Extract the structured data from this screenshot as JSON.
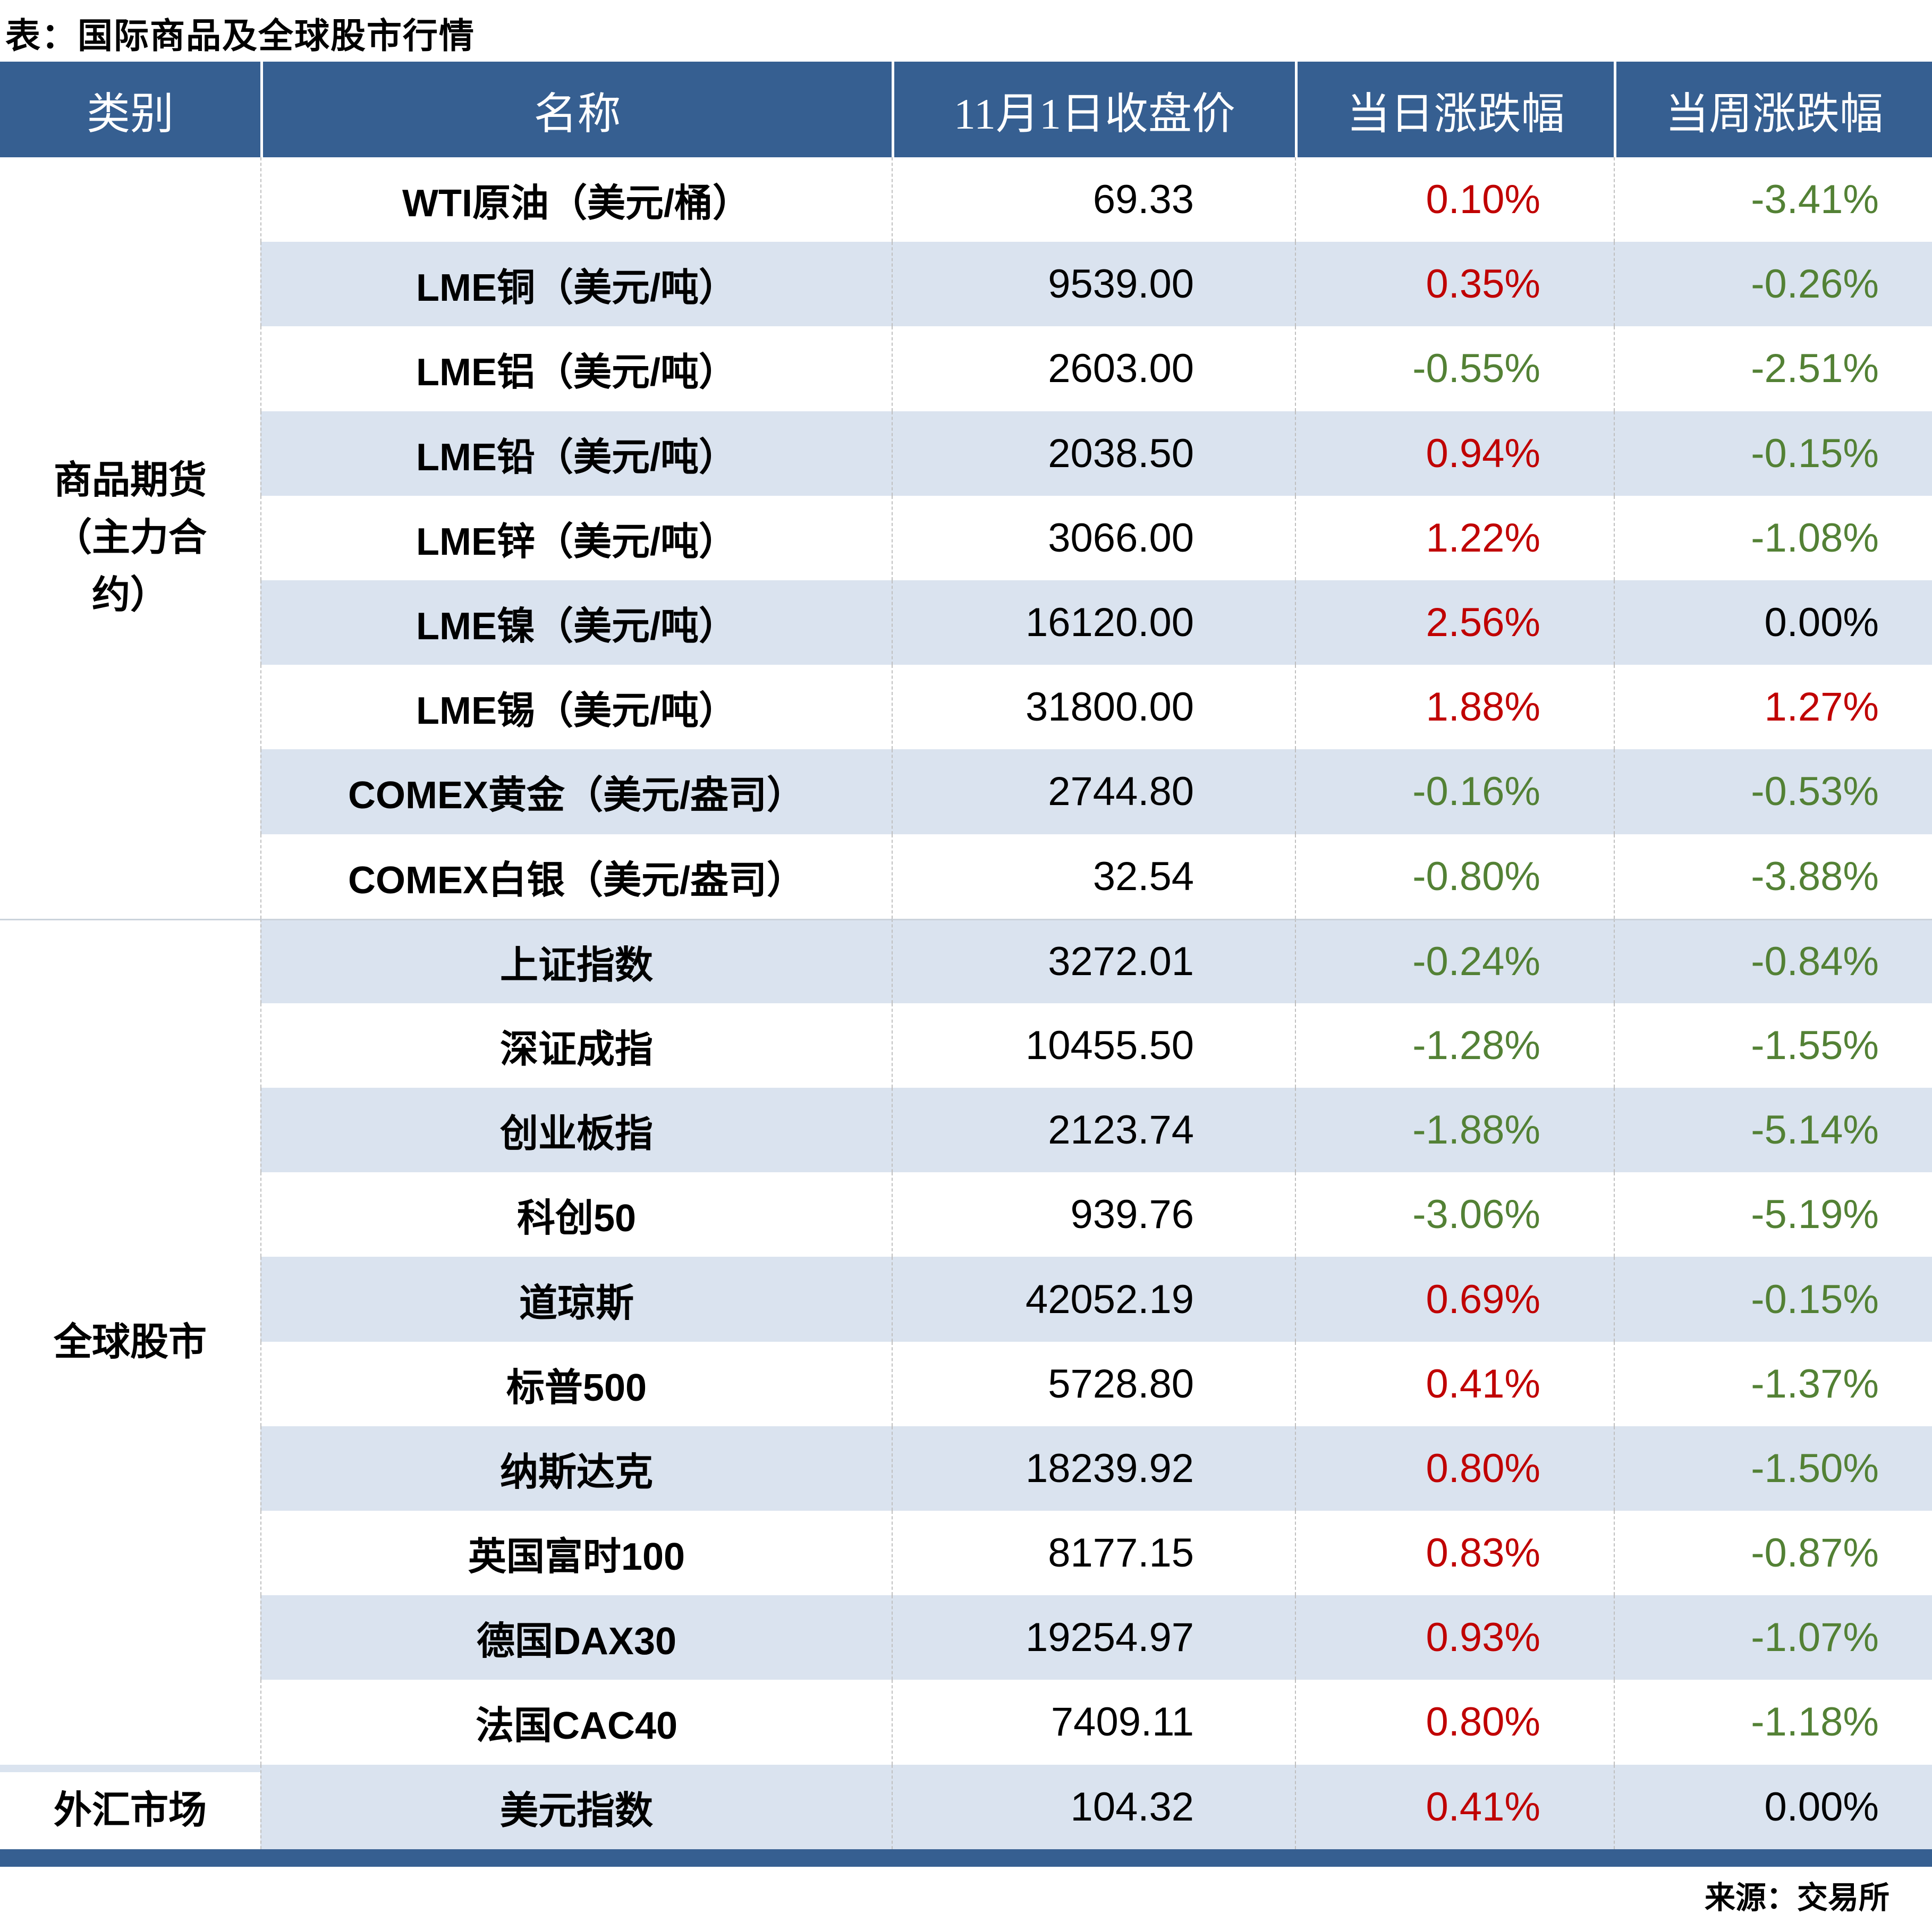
{
  "title": "表：国际商品及全球股市行情",
  "source": "来源：交易所",
  "colors": {
    "header_bg": "#365F91",
    "stripe": "#DAE3EF",
    "up": "#C00000",
    "down": "#538135",
    "neutral": "#000000"
  },
  "table": {
    "columns": [
      "类别",
      "名称",
      "11月1日收盘价",
      "当日涨跌幅",
      "当周涨跌幅"
    ],
    "sections": [
      {
        "category": "商品期货\n（主力合\n约）",
        "rows": [
          {
            "name": "WTI原油（美元/桶）",
            "close": "69.33",
            "day": "0.10%",
            "week": "-3.41%"
          },
          {
            "name": "LME铜（美元/吨）",
            "close": "9539.00",
            "day": "0.35%",
            "week": "-0.26%"
          },
          {
            "name": "LME铝（美元/吨）",
            "close": "2603.00",
            "day": "-0.55%",
            "week": "-2.51%"
          },
          {
            "name": "LME铅（美元/吨）",
            "close": "2038.50",
            "day": "0.94%",
            "week": "-0.15%"
          },
          {
            "name": "LME锌（美元/吨）",
            "close": "3066.00",
            "day": "1.22%",
            "week": "-1.08%"
          },
          {
            "name": "LME镍（美元/吨）",
            "close": "16120.00",
            "day": "2.56%",
            "week": "0.00%"
          },
          {
            "name": "LME锡（美元/吨）",
            "close": "31800.00",
            "day": "1.88%",
            "week": "1.27%"
          },
          {
            "name": "COMEX黄金（美元/盎司）",
            "close": "2744.80",
            "day": "-0.16%",
            "week": "-0.53%"
          },
          {
            "name": "COMEX白银（美元/盎司）",
            "close": "32.54",
            "day": "-0.80%",
            "week": "-3.88%"
          }
        ]
      },
      {
        "category": "全球股市",
        "rows": [
          {
            "name": "上证指数",
            "close": "3272.01",
            "day": "-0.24%",
            "week": "-0.84%"
          },
          {
            "name": "深证成指",
            "close": "10455.50",
            "day": "-1.28%",
            "week": "-1.55%"
          },
          {
            "name": "创业板指",
            "close": "2123.74",
            "day": "-1.88%",
            "week": "-5.14%"
          },
          {
            "name": "科创50",
            "close": "939.76",
            "day": "-3.06%",
            "week": "-5.19%"
          },
          {
            "name": "道琼斯",
            "close": "42052.19",
            "day": "0.69%",
            "week": "-0.15%"
          },
          {
            "name": "标普500",
            "close": "5728.80",
            "day": "0.41%",
            "week": "-1.37%"
          },
          {
            "name": "纳斯达克",
            "close": "18239.92",
            "day": "0.80%",
            "week": "-1.50%"
          },
          {
            "name": "英国富时100",
            "close": "8177.15",
            "day": "0.83%",
            "week": "-0.87%"
          },
          {
            "name": "德国DAX30",
            "close": "19254.97",
            "day": "0.93%",
            "week": "-1.07%"
          },
          {
            "name": "法国CAC40",
            "close": "7409.11",
            "day": "0.80%",
            "week": "-1.18%"
          }
        ]
      },
      {
        "category": "外汇市场",
        "rows": [
          {
            "name": "美元指数",
            "close": "104.32",
            "day": "0.41%",
            "week": "0.00%"
          }
        ]
      }
    ]
  },
  "chart_data": {
    "type": "table",
    "title": "表：国际商品及全球股市行情",
    "columns": [
      "类别",
      "名称",
      "11月1日收盘价",
      "当日涨跌幅",
      "当周涨跌幅"
    ],
    "rows": [
      [
        "商品期货（主力合约）",
        "WTI原油（美元/桶）",
        69.33,
        "0.10%",
        "-3.41%"
      ],
      [
        "商品期货（主力合约）",
        "LME铜（美元/吨）",
        9539.0,
        "0.35%",
        "-0.26%"
      ],
      [
        "商品期货（主力合约）",
        "LME铝（美元/吨）",
        2603.0,
        "-0.55%",
        "-2.51%"
      ],
      [
        "商品期货（主力合约）",
        "LME铅（美元/吨）",
        2038.5,
        "0.94%",
        "-0.15%"
      ],
      [
        "商品期货（主力合约）",
        "LME锌（美元/吨）",
        3066.0,
        "1.22%",
        "-1.08%"
      ],
      [
        "商品期货（主力合约）",
        "LME镍（美元/吨）",
        16120.0,
        "2.56%",
        "0.00%"
      ],
      [
        "商品期货（主力合约）",
        "LME锡（美元/吨）",
        31800.0,
        "1.88%",
        "1.27%"
      ],
      [
        "商品期货（主力合约）",
        "COMEX黄金（美元/盎司）",
        2744.8,
        "-0.16%",
        "-0.53%"
      ],
      [
        "商品期货（主力合约）",
        "COMEX白银（美元/盎司）",
        32.54,
        "-0.80%",
        "-3.88%"
      ],
      [
        "全球股市",
        "上证指数",
        3272.01,
        "-0.24%",
        "-0.84%"
      ],
      [
        "全球股市",
        "深证成指",
        10455.5,
        "-1.28%",
        "-1.55%"
      ],
      [
        "全球股市",
        "创业板指",
        2123.74,
        "-1.88%",
        "-5.14%"
      ],
      [
        "全球股市",
        "科创50",
        939.76,
        "-3.06%",
        "-5.19%"
      ],
      [
        "全球股市",
        "道琼斯",
        42052.19,
        "0.69%",
        "-0.15%"
      ],
      [
        "全球股市",
        "标普500",
        5728.8,
        "0.41%",
        "-1.37%"
      ],
      [
        "全球股市",
        "纳斯达克",
        18239.92,
        "0.80%",
        "-1.50%"
      ],
      [
        "全球股市",
        "英国富时100",
        8177.15,
        "0.83%",
        "-0.87%"
      ],
      [
        "全球股市",
        "德国DAX30",
        19254.97,
        "0.93%",
        "-1.07%"
      ],
      [
        "全球股市",
        "法国CAC40",
        7409.11,
        "0.80%",
        "-1.18%"
      ],
      [
        "外汇市场",
        "美元指数",
        104.32,
        "0.41%",
        "0.00%"
      ]
    ],
    "legend_position": "none",
    "notes": "positive changes red (#C00000), negative changes green (#538135), zero black; source footer 来源：交易所"
  }
}
